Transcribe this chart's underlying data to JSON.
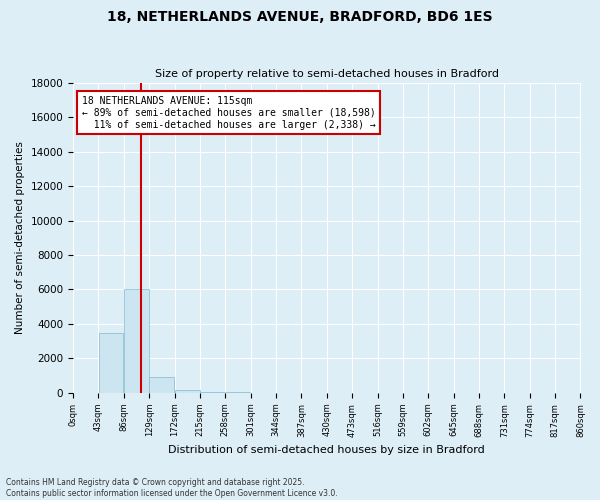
{
  "title": "18, NETHERLANDS AVENUE, BRADFORD, BD6 1ES",
  "subtitle": "Size of property relative to semi-detached houses in Bradford",
  "xlabel": "Distribution of semi-detached houses by size in Bradford",
  "ylabel": "Number of semi-detached properties",
  "property_size": 115,
  "property_label": "18 NETHERLANDS AVENUE: 115sqm",
  "pct_smaller": 89,
  "pct_larger": 11,
  "count_smaller": 18598,
  "count_larger": 2338,
  "bin_width": 43,
  "num_bins": 20,
  "bar_values": [
    0,
    3500,
    6000,
    900,
    150,
    60,
    30,
    15,
    8,
    5,
    3,
    2,
    1,
    1,
    0,
    0,
    0,
    0,
    0,
    0
  ],
  "bar_color": "#cce5f0",
  "bar_edge_color": "#7fbcd2",
  "vline_color": "#cc0000",
  "ylim": [
    0,
    18000
  ],
  "yticks": [
    0,
    2000,
    4000,
    6000,
    8000,
    10000,
    12000,
    14000,
    16000,
    18000
  ],
  "background_color": "#ddeef6",
  "grid_color": "#ffffff",
  "footer_line1": "Contains HM Land Registry data © Crown copyright and database right 2025.",
  "footer_line2": "Contains public sector information licensed under the Open Government Licence v3.0."
}
